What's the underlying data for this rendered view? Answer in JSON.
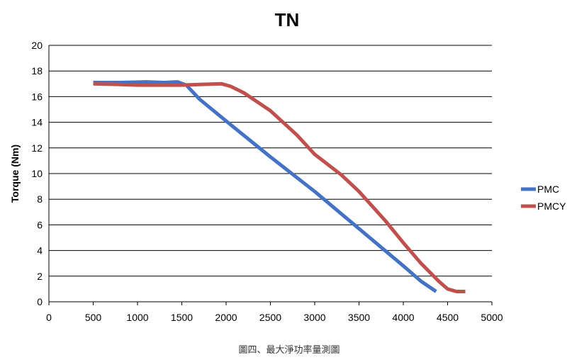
{
  "chart_data": {
    "type": "line",
    "title": "TN",
    "xlabel": "",
    "ylabel": "Torque (Nm)",
    "xlim": [
      0,
      5000
    ],
    "ylim": [
      0,
      20
    ],
    "x_ticks": [
      "0",
      "500",
      "1000",
      "1500",
      "2000",
      "2500",
      "3000",
      "3500",
      "4000",
      "4500",
      "5000"
    ],
    "y_ticks": [
      "0",
      "2",
      "4",
      "6",
      "8",
      "10",
      "12",
      "14",
      "16",
      "18",
      "20"
    ],
    "grid": "horizontal",
    "legend": "right",
    "series": [
      {
        "name": "PMC",
        "color": "#4472c4",
        "points": [
          [
            500,
            17.1
          ],
          [
            800,
            17.1
          ],
          [
            1100,
            17.15
          ],
          [
            1300,
            17.1
          ],
          [
            1450,
            17.15
          ],
          [
            1550,
            16.9
          ],
          [
            1700,
            15.8
          ],
          [
            2000,
            14.1
          ],
          [
            2500,
            11.3
          ],
          [
            3000,
            8.6
          ],
          [
            3500,
            5.7
          ],
          [
            4000,
            2.8
          ],
          [
            4200,
            1.6
          ],
          [
            4370,
            0.8
          ]
        ]
      },
      {
        "name": "PMCY",
        "color": "#c0504d",
        "points": [
          [
            500,
            17.0
          ],
          [
            800,
            16.95
          ],
          [
            1000,
            16.9
          ],
          [
            1500,
            16.9
          ],
          [
            1700,
            16.95
          ],
          [
            1950,
            17.0
          ],
          [
            2050,
            16.8
          ],
          [
            2200,
            16.3
          ],
          [
            2500,
            14.9
          ],
          [
            2800,
            13.0
          ],
          [
            3000,
            11.5
          ],
          [
            3300,
            9.9
          ],
          [
            3500,
            8.6
          ],
          [
            3800,
            6.3
          ],
          [
            4000,
            4.6
          ],
          [
            4200,
            3.0
          ],
          [
            4400,
            1.6
          ],
          [
            4500,
            1.0
          ],
          [
            4600,
            0.8
          ],
          [
            4700,
            0.8
          ]
        ]
      }
    ]
  },
  "caption": "圖四、最大淨功率量測圖"
}
